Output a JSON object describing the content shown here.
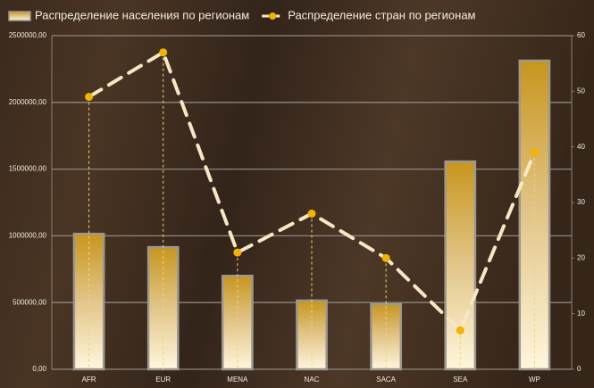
{
  "chart_data": {
    "type": "bar-line",
    "categories": [
      "AFR",
      "EUR",
      "MENA",
      "NAC",
      "SACA",
      "SEA",
      "WP"
    ],
    "series": [
      {
        "name": "Распределение населения по регионам",
        "type": "bar",
        "color": "#c8961e",
        "values": [
          1015000,
          915000,
          700000,
          515000,
          488000,
          1557000,
          2313000
        ]
      },
      {
        "name": "Распределение стран по регионам",
        "type": "line",
        "axis": "y2",
        "color": "#f7e7c4",
        "marker_color": "#f2b400",
        "values": [
          49,
          57,
          21,
          28,
          20,
          7,
          39
        ]
      }
    ],
    "ylim": [
      0,
      2500000
    ],
    "yticks": [
      {
        "value": 0,
        "label": "0,00"
      },
      {
        "value": 500000,
        "label": "500000,00"
      },
      {
        "value": 1000000,
        "label": "1000000,00"
      },
      {
        "value": 1500000,
        "label": "1500000,00"
      },
      {
        "value": 2000000,
        "label": "2000000,00"
      },
      {
        "value": 2500000,
        "label": "2500000,00"
      }
    ],
    "y2lim": [
      0,
      60
    ],
    "y2ticks": [
      0,
      10,
      20,
      30,
      40,
      50,
      60
    ],
    "grid": true,
    "legend": "top"
  }
}
